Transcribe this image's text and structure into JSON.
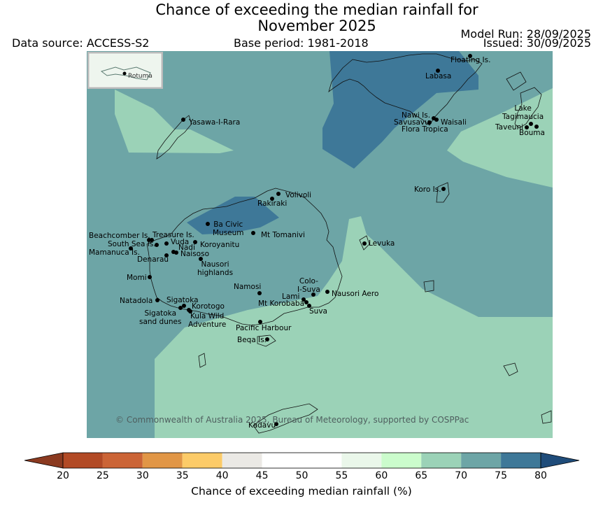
{
  "title": {
    "line1": "Chance of exceeding the median rainfall for",
    "line2": "November 2025"
  },
  "header": {
    "data_source": "Data source: ACCESS-S2",
    "base_period": "Base period: 1981-2018",
    "model_run": "Model Run: 28/09/2025",
    "issued": "Issued: 30/09/2025"
  },
  "inset_label": "Rotuma",
  "places": [
    {
      "name": "Floating Is."
    },
    {
      "name": "Labasa"
    },
    {
      "name": "Yasawa-I-Rara"
    },
    {
      "name": "Nawi Is."
    },
    {
      "name": "Savusavu"
    },
    {
      "name": "Waisali"
    },
    {
      "name": "Flora Tropica"
    },
    {
      "name": "Lake\nTagimaucia"
    },
    {
      "name": "Taveuni"
    },
    {
      "name": "Bouma"
    },
    {
      "name": "Koro Is."
    },
    {
      "name": "Volivoli"
    },
    {
      "name": "Rakiraki"
    },
    {
      "name": "Ba Civic\nMuseum"
    },
    {
      "name": "Mt Tomanivi"
    },
    {
      "name": "Beachcomber Is."
    },
    {
      "name": "Treasure Is."
    },
    {
      "name": "South Sea Is."
    },
    {
      "name": "Vuda"
    },
    {
      "name": "Koroyanitu"
    },
    {
      "name": "Mamanuca Is."
    },
    {
      "name": "Nadi"
    },
    {
      "name": "Naisoso"
    },
    {
      "name": "Denarau"
    },
    {
      "name": "Nausori\nhighlands"
    },
    {
      "name": "Levuka"
    },
    {
      "name": "Momi"
    },
    {
      "name": "Namosi"
    },
    {
      "name": "Colo-\nI-Suva"
    },
    {
      "name": "Natadola"
    },
    {
      "name": "Sigatoka"
    },
    {
      "name": "Lami"
    },
    {
      "name": "Nausori Aero"
    },
    {
      "name": "Korotogo"
    },
    {
      "name": "Mt Korobaba"
    },
    {
      "name": "Sigatoka\nsand dunes"
    },
    {
      "name": "Kula Wild\nAdventure"
    },
    {
      "name": "Suva"
    },
    {
      "name": "Pacific Harbour"
    },
    {
      "name": "Beqa Is."
    },
    {
      "name": "Kadavu"
    }
  ],
  "copyright": "© Commonwealth of Australia 2025, Bureau of Meteorology, supported by COSPPac",
  "colorbar": {
    "label": "Chance of exceeding median rainfall (%)",
    "ticks": [
      "20",
      "25",
      "30",
      "35",
      "40",
      "45",
      "50",
      "55",
      "60",
      "65",
      "70",
      "75",
      "80"
    ],
    "bins": [
      {
        "from": 20,
        "to": 25,
        "color": "#b24a25"
      },
      {
        "from": 25,
        "to": 30,
        "color": "#cb6436"
      },
      {
        "from": 30,
        "to": 35,
        "color": "#e19646"
      },
      {
        "from": 35,
        "to": 40,
        "color": "#fccb68"
      },
      {
        "from": 40,
        "to": 45,
        "color": "#ebe9e5"
      },
      {
        "from": 45,
        "to": 50,
        "color": "#ffffff"
      },
      {
        "from": 50,
        "to": 55,
        "color": "#ffffff"
      },
      {
        "from": 55,
        "to": 60,
        "color": "#eaf7ea"
      },
      {
        "from": 60,
        "to": 65,
        "color": "#cbfccc"
      },
      {
        "from": 65,
        "to": 70,
        "color": "#9bd2b7"
      },
      {
        "from": 70,
        "to": 75,
        "color": "#6da5a6"
      },
      {
        "from": 75,
        "to": 80,
        "color": "#3e7898"
      }
    ],
    "under_color": "#8b3a20",
    "over_color": "#1f4c7a"
  }
}
